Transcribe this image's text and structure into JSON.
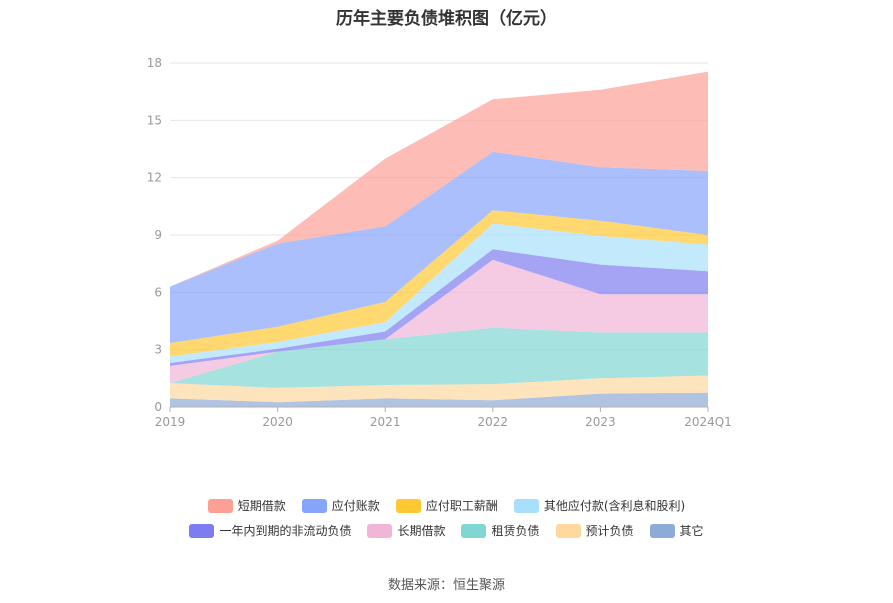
{
  "chart_data": {
    "type": "area",
    "title": "历年主要负债堆积图（亿元）",
    "categories": [
      "2019",
      "2020",
      "2021",
      "2022",
      "2023",
      "2024Q1"
    ],
    "y_ticks": [
      "0",
      "3",
      "6",
      "9",
      "12",
      "15",
      "18"
    ],
    "ylim": [
      0,
      18
    ],
    "stacked": true,
    "grid": true,
    "legend_position": "bottom",
    "series": [
      {
        "name": "其它",
        "color": "#8eaad6",
        "values": [
          0.45,
          0.25,
          0.45,
          0.35,
          0.7,
          0.75
        ]
      },
      {
        "name": "预计负债",
        "color": "#fdd9a0",
        "values": [
          0.8,
          0.75,
          0.7,
          0.85,
          0.8,
          0.9
        ]
      },
      {
        "name": "租赁负债",
        "color": "#7fd6d3",
        "values": [
          0.0,
          1.9,
          2.4,
          2.95,
          2.4,
          2.25
        ]
      },
      {
        "name": "长期借款",
        "color": "#f1b5d8",
        "values": [
          0.9,
          0.0,
          0.0,
          3.55,
          2.0,
          2.0
        ]
      },
      {
        "name": "一年内到期的非流动负债",
        "color": "#7d7cf0",
        "values": [
          0.15,
          0.15,
          0.4,
          0.55,
          1.55,
          1.2
        ]
      },
      {
        "name": "其他应付款(含利息和股利)",
        "color": "#a8dffb",
        "values": [
          0.35,
          0.35,
          0.5,
          1.35,
          1.5,
          1.4
        ]
      },
      {
        "name": "应付职工薪酬",
        "color": "#ffc833",
        "values": [
          0.7,
          0.8,
          1.05,
          0.7,
          0.8,
          0.5
        ]
      },
      {
        "name": "应付账款",
        "color": "#86a4fa",
        "values": [
          2.95,
          4.35,
          3.95,
          3.05,
          2.8,
          3.35
        ]
      },
      {
        "name": "短期借款",
        "color": "#fc9f95",
        "values": [
          0.0,
          0.15,
          3.55,
          2.75,
          4.05,
          5.2
        ]
      }
    ]
  },
  "legend_order": [
    [
      "短期借款",
      "应付账款",
      "应付职工薪酬",
      "其他应付款(含利息和股利)"
    ],
    [
      "一年内到期的非流动负债",
      "长期借款",
      "租赁负债",
      "预计负债",
      "其它"
    ]
  ],
  "source_text": "数据来源：恒生聚源"
}
